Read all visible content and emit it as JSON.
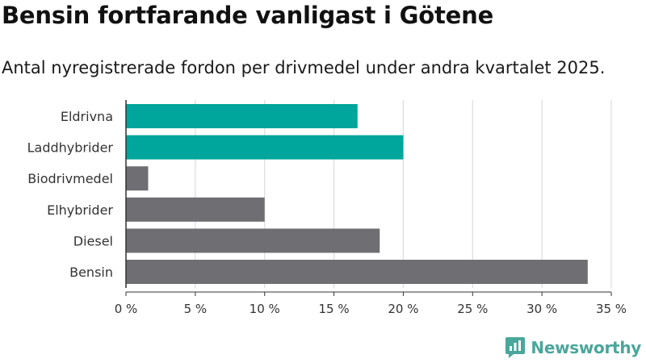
{
  "title": "Bensin fortfarande vanligast i Götene",
  "subtitle": "Antal nyregistrerade fordon per drivmedel under andra kvartalet 2025.",
  "brand": {
    "name": "Newsworthy",
    "color": "#4aa79b",
    "icon": "newsworthy-logo-icon"
  },
  "colors": {
    "highlight": "#00a59b",
    "default": "#6f6e73",
    "grid": "#dcdcdc"
  },
  "chart_data": {
    "type": "bar",
    "orientation": "horizontal",
    "categories": [
      "Eldrivna",
      "Laddhybrider",
      "Biodrivmedel",
      "Elhybrider",
      "Diesel",
      "Bensin"
    ],
    "values": [
      16.7,
      20.0,
      1.6,
      10.0,
      18.3,
      33.3
    ],
    "highlighted": [
      true,
      true,
      false,
      false,
      false,
      false
    ],
    "xlim": [
      0,
      35
    ],
    "xticks": [
      0,
      5,
      10,
      15,
      20,
      25,
      30,
      35
    ],
    "tick_labels": [
      "0 %",
      "5 %",
      "10 %",
      "15 %",
      "20 %",
      "25 %",
      "30 %",
      "35 %"
    ],
    "grid": true
  }
}
